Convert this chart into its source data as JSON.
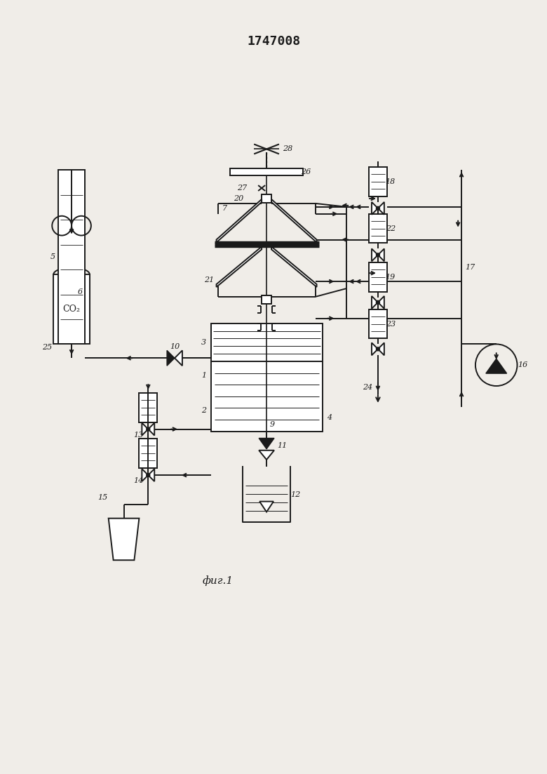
{
  "title": "1747008",
  "caption": "фиг.1",
  "bg_color": "#f0ede8",
  "line_color": "#1a1a1a",
  "figsize": [
    7.8,
    11.03
  ],
  "dpi": 100
}
